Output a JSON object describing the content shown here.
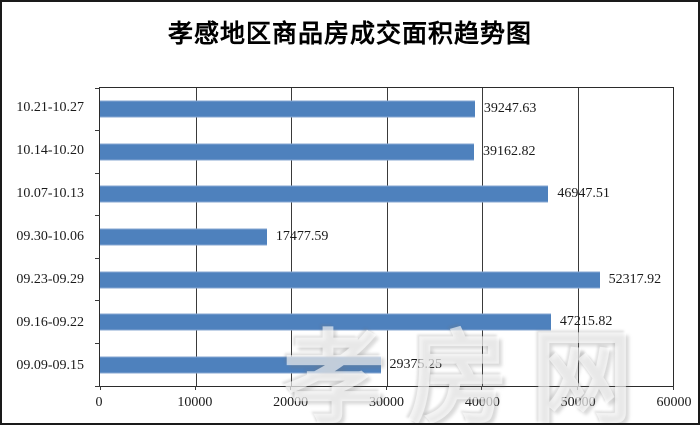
{
  "title": "孝感地区商品房成交面积趋势图",
  "watermark_text": "孝房网",
  "colors": {
    "bar_fill": "#4e81bd",
    "bar_edge": "#87a7d2",
    "gridline": "#3a3a3a",
    "text": "#1a1a1a",
    "background": "#ffffff",
    "watermark": "rgba(255,255,255,0.62)"
  },
  "chart_data": {
    "type": "bar",
    "orientation": "horizontal",
    "title": "孝感地区商品房成交面积趋势图",
    "categories": [
      "10.21-10.27",
      "10.14-10.20",
      "10.07-10.13",
      "09.30-10.06",
      "09.23-09.29",
      "09.16-09.22",
      "09.09-09.15"
    ],
    "values": [
      39247.63,
      39162.82,
      46947.51,
      17477.59,
      52317.92,
      47215.82,
      29375.25
    ],
    "value_labels": [
      "39247.63",
      "39162.82",
      "46947.51",
      "17477.59",
      "52317.92",
      "47215.82",
      "29375.25"
    ],
    "xlabel": "",
    "ylabel": "",
    "xlim": [
      0,
      60000
    ],
    "x_ticks": [
      0,
      10000,
      20000,
      30000,
      40000,
      50000,
      60000
    ],
    "x_tick_labels": [
      "0",
      "10000",
      "20000",
      "30000",
      "40000",
      "50000",
      "60000"
    ],
    "grid": true,
    "legend": "none",
    "data_labels": true
  }
}
